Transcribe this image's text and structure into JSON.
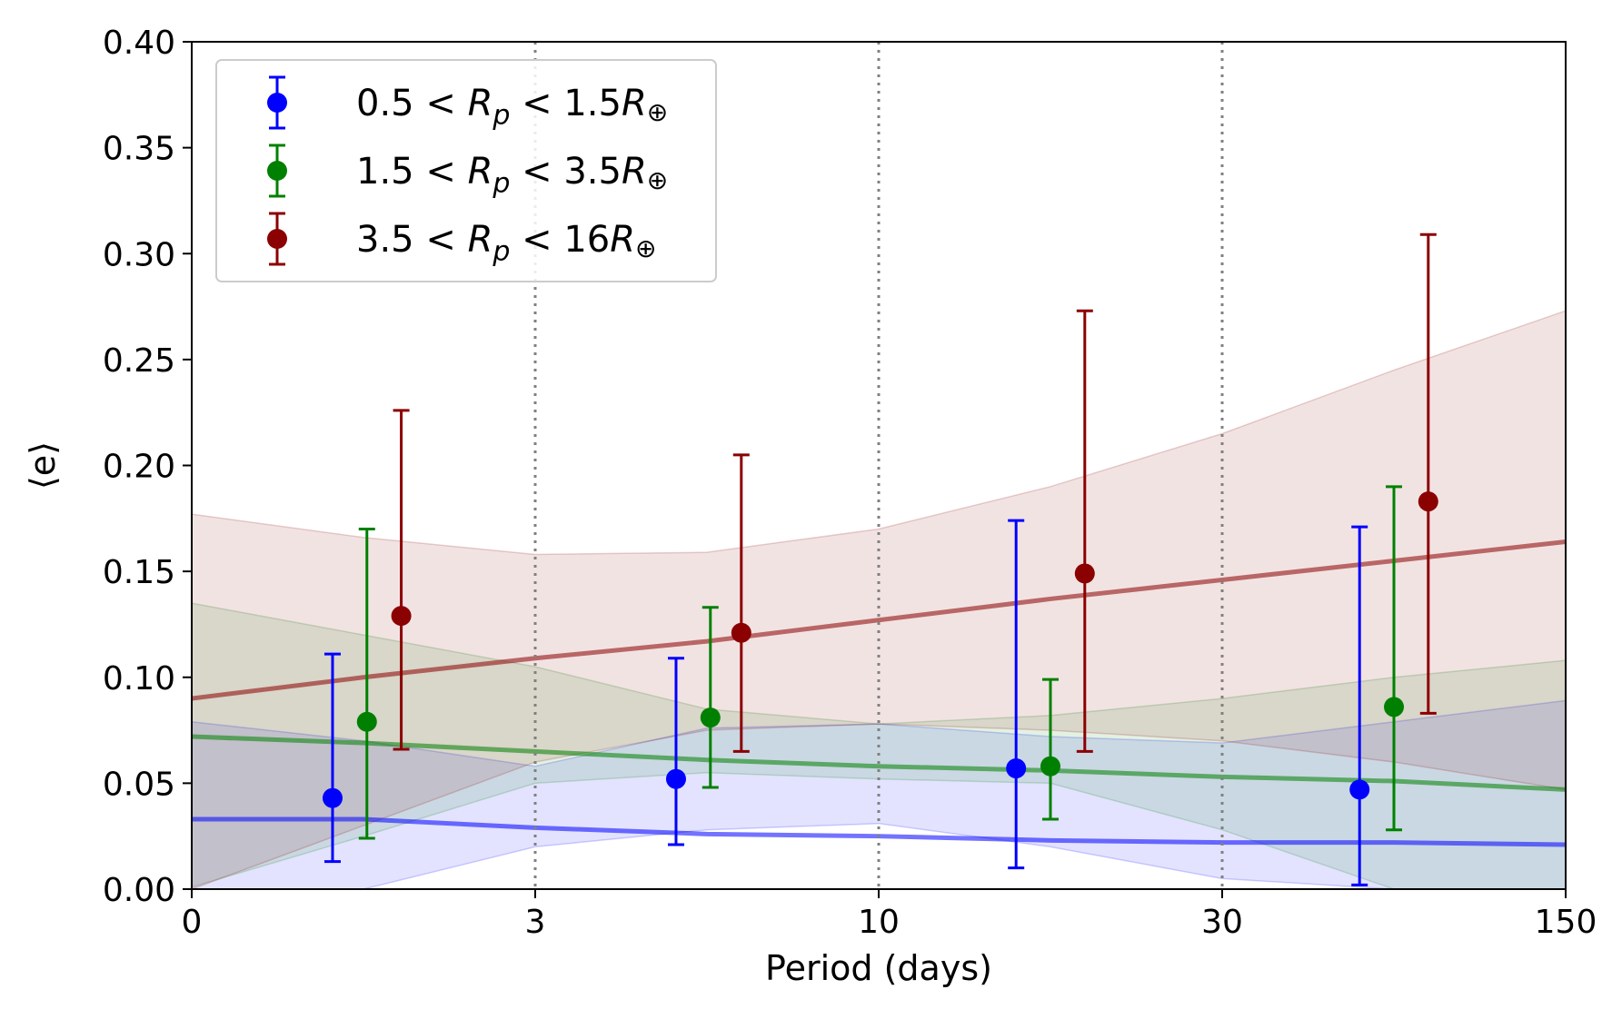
{
  "chart_data": {
    "type": "scatter",
    "title": "",
    "xlabel": "Period (days)",
    "ylabel": "⟨e⟩",
    "xscale": "segmented",
    "x_ticks": [
      "0",
      "3",
      "10",
      "30",
      "150"
    ],
    "x_tick_positions": [
      0,
      1,
      2,
      3,
      4
    ],
    "y_ticks": [
      "0.00",
      "0.05",
      "0.10",
      "0.15",
      "0.20",
      "0.25",
      "0.30",
      "0.35",
      "0.40"
    ],
    "ylim": [
      0,
      0.4
    ],
    "xlim": [
      0,
      4
    ],
    "vlines": [
      1,
      2,
      3
    ],
    "legend_position": "top-left",
    "series": [
      {
        "name": "0.5 < R_p < 1.5R⊕",
        "legend": {
          "pre": "0.5 < ",
          "var": "R",
          "sub": "p",
          "post": " < 1.5",
          "r": "R",
          "earth": "⊕"
        },
        "color": "#0000ff",
        "points": [
          {
            "x": 0.41,
            "y": 0.043,
            "lo": 0.013,
            "hi": 0.111
          },
          {
            "x": 1.41,
            "y": 0.052,
            "lo": 0.021,
            "hi": 0.109
          },
          {
            "x": 2.4,
            "y": 0.057,
            "lo": 0.01,
            "hi": 0.174
          },
          {
            "x": 3.4,
            "y": 0.047,
            "lo": 0.002,
            "hi": 0.171
          }
        ],
        "trend": {
          "x": [
            0,
            0.5,
            1,
            1.5,
            2,
            2.5,
            3,
            3.5,
            4
          ],
          "y": [
            0.033,
            0.033,
            0.029,
            0.026,
            0.025,
            0.023,
            0.022,
            0.022,
            0.021
          ],
          "lower": [
            0.0,
            0.0,
            0.02,
            0.028,
            0.031,
            0.02,
            0.005,
            0.0,
            0.0
          ],
          "upper": [
            0.079,
            0.07,
            0.058,
            0.076,
            0.078,
            0.072,
            0.069,
            0.079,
            0.089
          ]
        }
      },
      {
        "name": "1.5 < R_p < 3.5R⊕",
        "legend": {
          "pre": "1.5 < ",
          "var": "R",
          "sub": "p",
          "post": " < 3.5",
          "r": "R",
          "earth": "⊕"
        },
        "color": "#008000",
        "points": [
          {
            "x": 0.51,
            "y": 0.079,
            "lo": 0.024,
            "hi": 0.17
          },
          {
            "x": 1.51,
            "y": 0.081,
            "lo": 0.048,
            "hi": 0.133
          },
          {
            "x": 2.5,
            "y": 0.058,
            "lo": 0.033,
            "hi": 0.099
          },
          {
            "x": 3.5,
            "y": 0.086,
            "lo": 0.028,
            "hi": 0.19
          }
        ],
        "trend": {
          "x": [
            0,
            0.5,
            1,
            1.5,
            2,
            2.5,
            3,
            3.5,
            4
          ],
          "y": [
            0.072,
            0.069,
            0.065,
            0.061,
            0.058,
            0.056,
            0.053,
            0.051,
            0.047
          ],
          "lower": [
            0.001,
            0.025,
            0.05,
            0.055,
            0.052,
            0.05,
            0.028,
            0.0,
            0.0
          ],
          "upper": [
            0.135,
            0.12,
            0.105,
            0.085,
            0.078,
            0.082,
            0.09,
            0.1,
            0.108
          ]
        }
      },
      {
        "name": "3.5 < R_p < 16R⊕",
        "legend": {
          "pre": "3.5 < ",
          "var": "R",
          "sub": "p",
          "post": " < 16",
          "r": "R",
          "earth": "⊕"
        },
        "color": "#8b0000",
        "points": [
          {
            "x": 0.61,
            "y": 0.129,
            "lo": 0.066,
            "hi": 0.226
          },
          {
            "x": 1.6,
            "y": 0.121,
            "lo": 0.065,
            "hi": 0.205
          },
          {
            "x": 2.6,
            "y": 0.149,
            "lo": 0.065,
            "hi": 0.273
          },
          {
            "x": 3.6,
            "y": 0.183,
            "lo": 0.083,
            "hi": 0.309
          }
        ],
        "trend": {
          "x": [
            0,
            0.5,
            1,
            1.5,
            2,
            2.5,
            3,
            3.5,
            4
          ],
          "y": [
            0.09,
            0.1,
            0.109,
            0.117,
            0.127,
            0.137,
            0.146,
            0.155,
            0.164
          ],
          "lower": [
            0.0,
            0.03,
            0.06,
            0.075,
            0.078,
            0.075,
            0.07,
            0.06,
            0.047
          ],
          "upper": [
            0.177,
            0.166,
            0.158,
            0.159,
            0.17,
            0.19,
            0.215,
            0.245,
            0.273
          ]
        }
      }
    ]
  }
}
